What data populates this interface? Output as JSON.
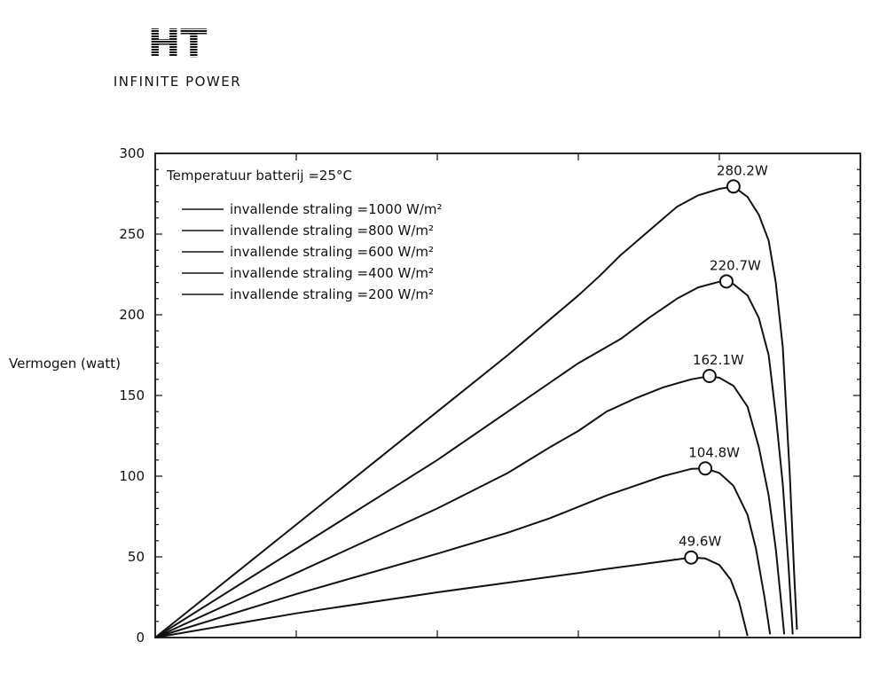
{
  "logo": {
    "mark": "HT",
    "tagline": "INFINITE POWER"
  },
  "chart_data": {
    "type": "line",
    "title": "",
    "xlabel": "",
    "ylabel": "Vermogen (watt)",
    "ylim": [
      0,
      300
    ],
    "xlim": [
      0,
      50
    ],
    "yticks": [
      0,
      50,
      100,
      150,
      200,
      250,
      300
    ],
    "grid": false,
    "legend_title": "Temperatuur batterij =25°C",
    "legend_position": "top-left",
    "series": [
      {
        "name": "invallende straling =1000 W/m²",
        "peak_label": "280.2W",
        "points": [
          [
            0,
            0
          ],
          [
            10,
            70
          ],
          [
            20,
            140
          ],
          [
            25,
            175
          ],
          [
            30,
            212
          ],
          [
            31.5,
            224
          ],
          [
            33,
            237
          ],
          [
            35,
            252
          ],
          [
            37,
            267
          ],
          [
            38.5,
            274
          ],
          [
            40,
            278
          ],
          [
            41,
            279.5
          ],
          [
            42,
            273
          ],
          [
            42.8,
            262
          ],
          [
            43.5,
            246
          ],
          [
            44,
            220
          ],
          [
            44.5,
            180
          ],
          [
            45,
            100
          ],
          [
            45.3,
            40
          ],
          [
            45.5,
            5
          ]
        ]
      },
      {
        "name": "invallende straling =800 W/m²",
        "peak_label": "220.7W",
        "points": [
          [
            0,
            0
          ],
          [
            10,
            55
          ],
          [
            20,
            110
          ],
          [
            25,
            140
          ],
          [
            30,
            170
          ],
          [
            33,
            185
          ],
          [
            35,
            198
          ],
          [
            37,
            210
          ],
          [
            38.5,
            217
          ],
          [
            40,
            220.5
          ],
          [
            41,
            219
          ],
          [
            42,
            212
          ],
          [
            42.8,
            198
          ],
          [
            43.5,
            175
          ],
          [
            44,
            138
          ],
          [
            44.5,
            95
          ],
          [
            44.9,
            45
          ],
          [
            45.2,
            2
          ]
        ]
      },
      {
        "name": "invallende straling =600 W/m²",
        "peak_label": "162.1W",
        "points": [
          [
            0,
            0
          ],
          [
            10,
            40
          ],
          [
            20,
            80
          ],
          [
            25,
            102
          ],
          [
            28,
            118
          ],
          [
            30,
            128
          ],
          [
            32,
            140
          ],
          [
            34,
            148
          ],
          [
            36,
            155
          ],
          [
            38,
            160
          ],
          [
            39.3,
            162
          ],
          [
            40,
            161
          ],
          [
            41,
            156
          ],
          [
            42,
            143
          ],
          [
            42.8,
            118
          ],
          [
            43.5,
            88
          ],
          [
            44,
            55
          ],
          [
            44.4,
            20
          ],
          [
            44.6,
            2
          ]
        ]
      },
      {
        "name": "invallende straling =400 W/m²",
        "peak_label": "104.8W",
        "points": [
          [
            0,
            0
          ],
          [
            10,
            27
          ],
          [
            20,
            52
          ],
          [
            25,
            65
          ],
          [
            28,
            74
          ],
          [
            30,
            81
          ],
          [
            32,
            88
          ],
          [
            34,
            94
          ],
          [
            36,
            100
          ],
          [
            38,
            104.5
          ],
          [
            39,
            104.8
          ],
          [
            40,
            102
          ],
          [
            41,
            94
          ],
          [
            42,
            76
          ],
          [
            42.6,
            55
          ],
          [
            43.2,
            25
          ],
          [
            43.6,
            2
          ]
        ]
      },
      {
        "name": "invallende straling =200 W/m²",
        "peak_label": "49.6W",
        "points": [
          [
            0,
            0
          ],
          [
            10,
            15
          ],
          [
            20,
            28
          ],
          [
            25,
            34
          ],
          [
            30,
            40
          ],
          [
            32,
            42.5
          ],
          [
            35,
            46
          ],
          [
            37.5,
            49
          ],
          [
            38,
            49.6
          ],
          [
            39,
            49
          ],
          [
            40,
            45
          ],
          [
            40.8,
            36
          ],
          [
            41.4,
            22
          ],
          [
            41.8,
            8
          ],
          [
            42,
            1
          ]
        ]
      }
    ],
    "peaks": [
      {
        "label": "280.2W",
        "x": 41,
        "y": 279.5
      },
      {
        "label": "220.7W",
        "x": 40.5,
        "y": 220.7
      },
      {
        "label": "162.1W",
        "x": 39.3,
        "y": 162.1
      },
      {
        "label": "104.8W",
        "x": 39,
        "y": 104.8
      },
      {
        "label": "49.6W",
        "x": 38,
        "y": 49.6
      }
    ]
  }
}
